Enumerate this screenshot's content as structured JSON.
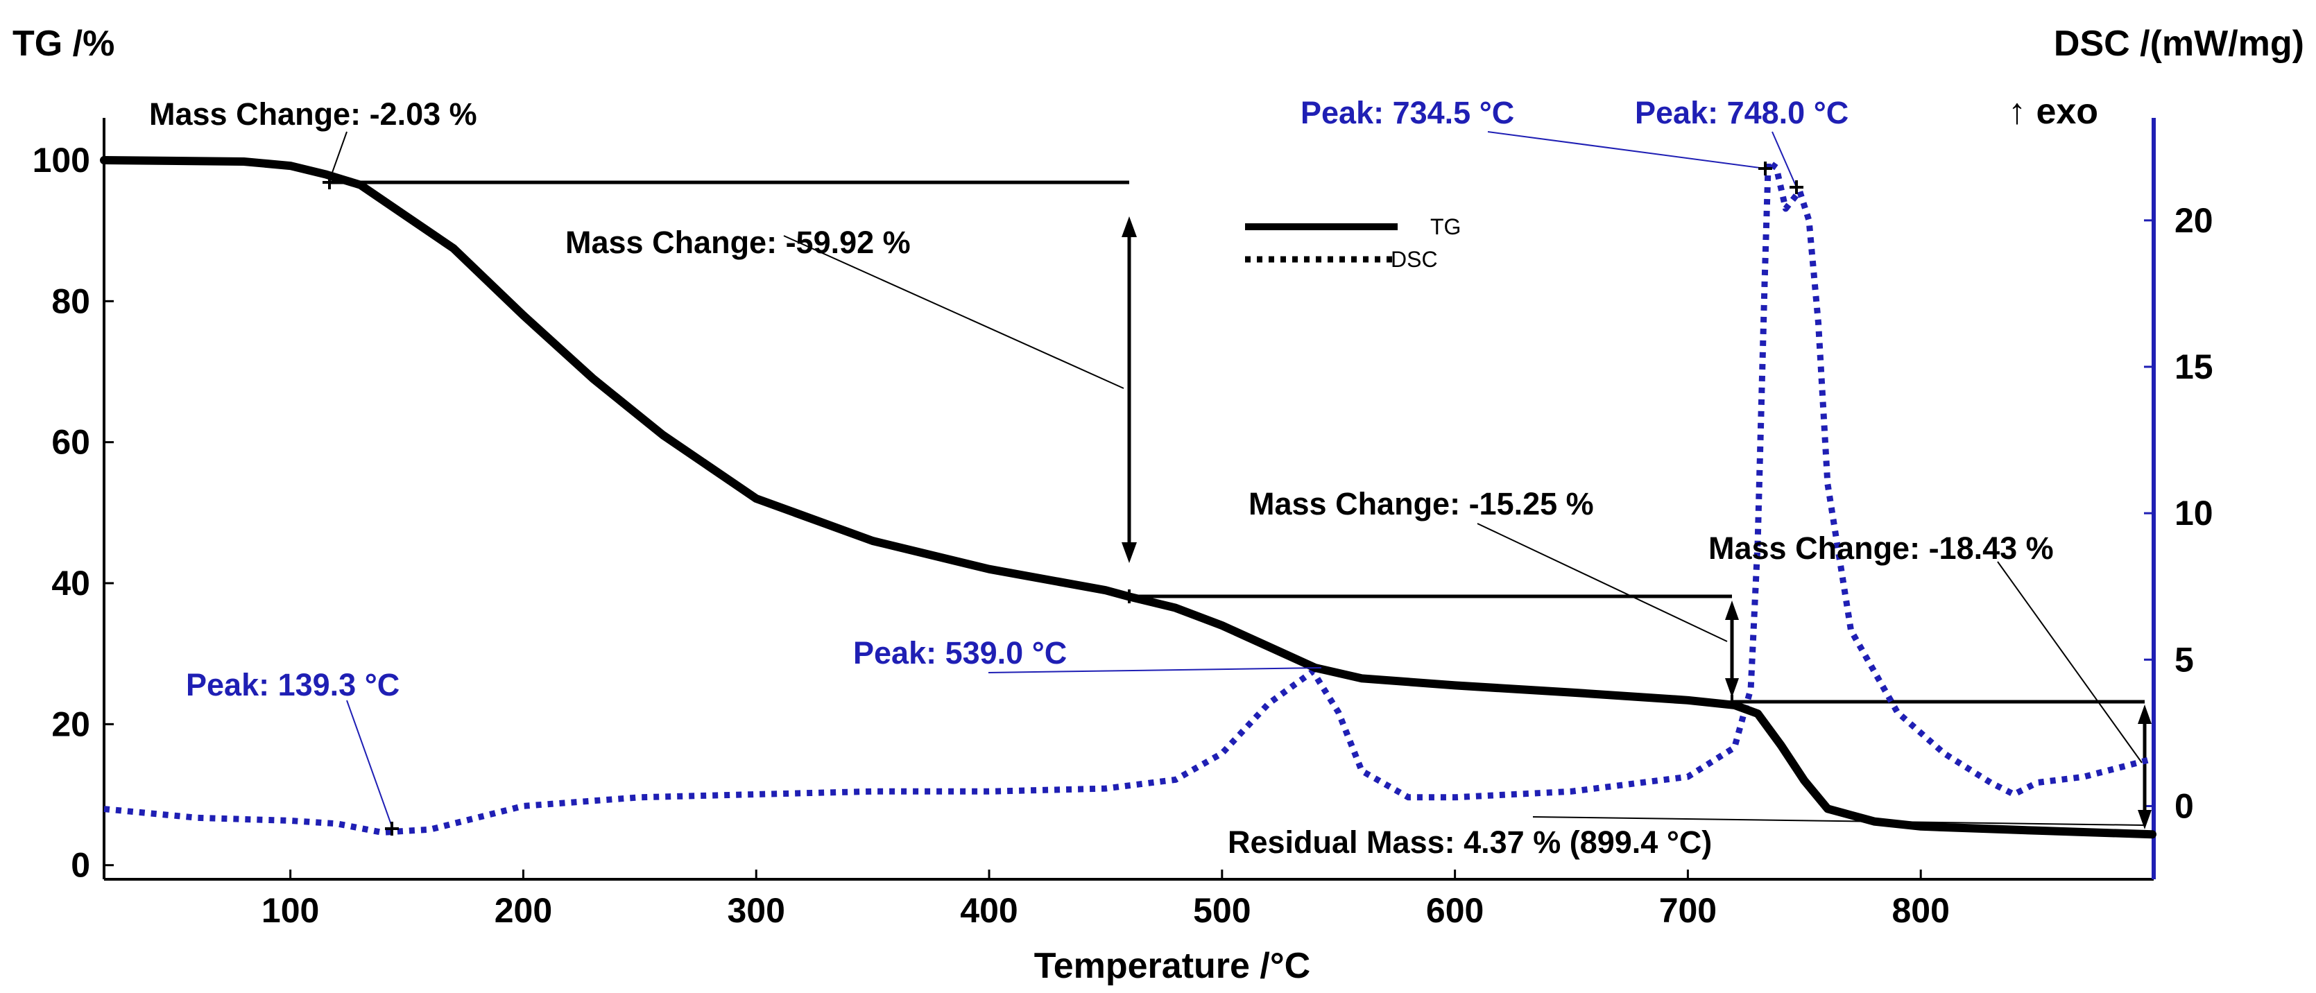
{
  "chart_data": {
    "type": "line",
    "title": "",
    "xlabel": "Temperature /°C",
    "ylabel_left": "TG /%",
    "ylabel_right": "DSC /(mW/mg)",
    "exo_label": "↑ exo",
    "xlim": [
      20,
      900
    ],
    "ylim_left": [
      -2,
      106
    ],
    "ylim_right": [
      -2.5,
      23.5
    ],
    "x_ticks": [
      100,
      200,
      300,
      400,
      500,
      600,
      700,
      800
    ],
    "x_tick_labels": [
      "100",
      "200",
      "300",
      "400",
      "500",
      "600",
      "700",
      "800"
    ],
    "y_left_ticks": [
      0,
      20,
      40,
      60,
      80,
      100
    ],
    "y_left_tick_labels": [
      "0",
      "20",
      "40",
      "60",
      "80",
      "100"
    ],
    "y_right_ticks": [
      0,
      5,
      10,
      15,
      20
    ],
    "y_right_tick_labels": [
      "0",
      "5",
      "10",
      "15",
      "20"
    ],
    "colors": {
      "tg": "#000000",
      "dsc": "#1f1fb4",
      "right_axis": "#1f1fb4"
    },
    "legend": [
      {
        "name": "TG",
        "style": "solid"
      },
      {
        "name": "DSC",
        "style": "dotted"
      }
    ],
    "series": [
      {
        "name": "TG",
        "axis": "left",
        "x": [
          20,
          80,
          100,
          115,
          130,
          150,
          170,
          200,
          230,
          260,
          300,
          350,
          400,
          450,
          460,
          480,
          500,
          520,
          540,
          560,
          600,
          650,
          700,
          720,
          730,
          740,
          750,
          760,
          780,
          800,
          850,
          899.4
        ],
        "y": [
          100,
          99.8,
          99.2,
          98.0,
          96.5,
          92.0,
          87.5,
          78.0,
          69.0,
          61.0,
          52.0,
          46.0,
          42.0,
          39.0,
          38.1,
          36.5,
          34.0,
          31.0,
          28.0,
          26.5,
          25.5,
          24.5,
          23.4,
          22.7,
          21.5,
          17.0,
          12.0,
          8.0,
          6.2,
          5.5,
          4.9,
          4.37
        ]
      },
      {
        "name": "DSC",
        "axis": "right",
        "x": [
          20,
          60,
          100,
          120,
          139.3,
          160,
          200,
          250,
          300,
          350,
          400,
          450,
          480,
          500,
          520,
          539,
          550,
          560,
          580,
          600,
          650,
          700,
          720,
          727,
          730,
          733,
          734.5,
          738,
          742,
          748,
          752,
          756,
          760,
          770,
          790,
          810,
          830,
          840,
          850,
          870,
          899
        ],
        "y": [
          -0.1,
          -0.4,
          -0.5,
          -0.6,
          -0.9,
          -0.8,
          0.0,
          0.3,
          0.4,
          0.5,
          0.5,
          0.6,
          0.9,
          1.8,
          3.5,
          4.6,
          3.2,
          1.2,
          0.3,
          0.3,
          0.5,
          1.0,
          2.0,
          4.0,
          9.0,
          18.0,
          22.0,
          21.8,
          20.4,
          21.0,
          20.0,
          16.5,
          11.0,
          6.0,
          3.2,
          1.8,
          0.8,
          0.4,
          0.8,
          1.0,
          1.6
        ]
      }
    ],
    "annotations": {
      "mass_change_1": "Mass Change: -2.03 %",
      "mass_change_2": "Mass Change: -59.92 %",
      "mass_change_3": "Mass Change: -15.25 %",
      "mass_change_4": "Mass Change: -18.43 %",
      "residual_mass": "Residual Mass: 4.37 % (899.4 °C)",
      "peak_1393": "Peak: 139.3 °C",
      "peak_539": "Peak: 539.0 °C",
      "peak_7345": "Peak: 734.5 °C",
      "peak_748": "Peak: 748.0 °C"
    }
  }
}
